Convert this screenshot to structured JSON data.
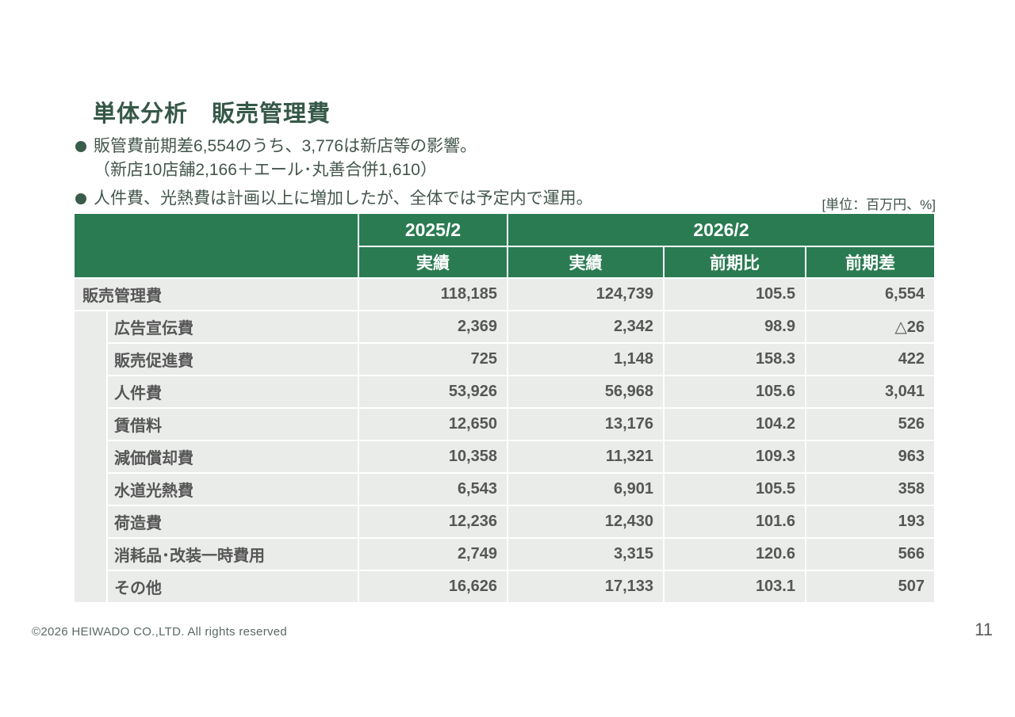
{
  "slide": {
    "title": "単体分析　販売管理費",
    "bullet1_line1": "販管費前期差6,554のうち、3,776は新店等の影響。",
    "bullet1_line2": "（新店10店舗2,166＋エール･丸善合併1,610）",
    "bullet2_line1": "人件費、光熱費は計画以上に増加したが、全体では予定内で運用。",
    "unit_label": "[単位：百万円、%]",
    "footer_copyright": "©2026  HEIWADO CO.,LTD.  All rights reserved",
    "page_number": "11"
  },
  "colors": {
    "header_green": "#2a7b52",
    "title_green": "#355848",
    "bullet_text": "#44564c",
    "row_background": "#e9ece9",
    "body_text": "#565656"
  },
  "table": {
    "col_groups": [
      {
        "label": "2025/2",
        "span": 1
      },
      {
        "label": "2026/2",
        "span": 3
      }
    ],
    "col_headers": [
      "実績",
      "実績",
      "前期比",
      "前期差"
    ],
    "rows": [
      {
        "label": "販売管理費",
        "indent": false,
        "values": [
          "118,185",
          "124,739",
          "105.5",
          "6,554"
        ]
      },
      {
        "label": "広告宣伝費",
        "indent": true,
        "values": [
          "2,369",
          "2,342",
          "98.9",
          "△26"
        ]
      },
      {
        "label": "販売促進費",
        "indent": true,
        "values": [
          "725",
          "1,148",
          "158.3",
          "422"
        ]
      },
      {
        "label": "人件費",
        "indent": true,
        "values": [
          "53,926",
          "56,968",
          "105.6",
          "3,041"
        ]
      },
      {
        "label": "賃借料",
        "indent": true,
        "values": [
          "12,650",
          "13,176",
          "104.2",
          "526"
        ]
      },
      {
        "label": "減価償却費",
        "indent": true,
        "values": [
          "10,358",
          "11,321",
          "109.3",
          "963"
        ]
      },
      {
        "label": "水道光熱費",
        "indent": true,
        "values": [
          "6,543",
          "6,901",
          "105.5",
          "358"
        ]
      },
      {
        "label": "荷造費",
        "indent": true,
        "values": [
          "12,236",
          "12,430",
          "101.6",
          "193"
        ]
      },
      {
        "label": "消耗品･改装一時費用",
        "indent": true,
        "values": [
          "2,749",
          "3,315",
          "120.6",
          "566"
        ]
      },
      {
        "label": "その他",
        "indent": true,
        "values": [
          "16,626",
          "17,133",
          "103.1",
          "507"
        ]
      }
    ]
  }
}
